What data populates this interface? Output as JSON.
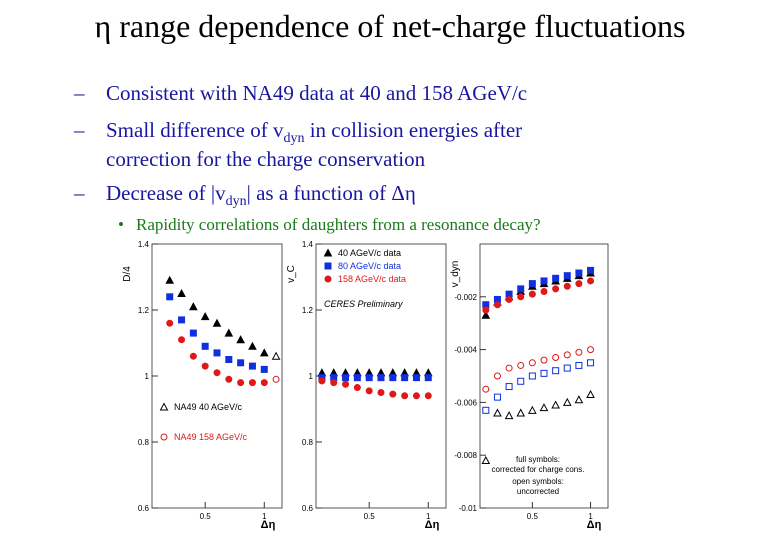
{
  "slide": {
    "title": "η range dependence of net-charge fluctuations",
    "bullets": [
      "Consistent with NA49 data at 40 and 158 AGeV/c",
      "Small difference of v",
      "dyn",
      " in collision energies after",
      "correction for the charge conservation",
      "Decrease of |v",
      "dyn",
      "| as a function of Δη"
    ],
    "sub_bullet": "Rapidity correlations of daughters from a resonance decay?",
    "dash": "–",
    "dot": "•"
  },
  "colors": {
    "text_blue": "#1a16a0",
    "text_green": "#1a7a1a",
    "black_series": "#000000",
    "blue_series": "#1030e0",
    "red_series": "#e01818"
  },
  "chart_data": [
    {
      "type": "scatter",
      "ylabel": "D/4",
      "xlabel": "Δη",
      "yticks": [
        "0.6",
        "0.8",
        "1",
        "1.2",
        "1.4"
      ],
      "xticks": [
        "0.5",
        "1"
      ],
      "ylim": [
        0.6,
        1.4
      ],
      "xlim": [
        0.05,
        1.15
      ],
      "legend": [
        {
          "label": "NA49 40 AGeV/c",
          "marker": "open-triangle",
          "color": "#000000"
        },
        {
          "label": "NA49 158 AGeV/c",
          "marker": "open-circle",
          "color": "#e01818"
        }
      ],
      "series": [
        {
          "name": "NA49 40 AGeV/c",
          "marker": "filled-triangle",
          "color": "#000000",
          "x": [
            0.2,
            0.3,
            0.4,
            0.5,
            0.6,
            0.7,
            0.8,
            0.9,
            1.0
          ],
          "y": [
            1.29,
            1.25,
            1.21,
            1.18,
            1.16,
            1.13,
            1.11,
            1.09,
            1.07
          ]
        },
        {
          "name": "NA49 40 AGeV/c open",
          "marker": "open-triangle",
          "color": "#000000",
          "x": [
            1.1
          ],
          "y": [
            1.06
          ]
        },
        {
          "marker": "filled-square",
          "color": "#1030e0",
          "x": [
            0.2,
            0.3,
            0.4,
            0.5,
            0.6,
            0.7,
            0.8,
            0.9,
            1.0
          ],
          "y": [
            1.24,
            1.17,
            1.13,
            1.09,
            1.07,
            1.05,
            1.04,
            1.03,
            1.02
          ]
        },
        {
          "name": "NA49 158 AGeV/c",
          "marker": "filled-circle",
          "color": "#e01818",
          "x": [
            0.2,
            0.3,
            0.4,
            0.5,
            0.6,
            0.7,
            0.8,
            0.9,
            1.0
          ],
          "y": [
            1.16,
            1.11,
            1.06,
            1.03,
            1.01,
            0.99,
            0.98,
            0.98,
            0.98
          ]
        },
        {
          "marker": "open-circle",
          "color": "#e01818",
          "x": [
            1.1
          ],
          "y": [
            0.99
          ]
        }
      ]
    },
    {
      "type": "scatter",
      "ylabel": "v_C",
      "xlabel": "Δη",
      "yticks": [
        "0.6",
        "0.8",
        "1",
        "1.2",
        "1.4"
      ],
      "xticks": [
        "0.5",
        "1"
      ],
      "ylim": [
        0.6,
        1.4
      ],
      "xlim": [
        0.05,
        1.15
      ],
      "annotation": "CERES Preliminary",
      "legend": [
        {
          "label": "40 AGeV/c data",
          "marker": "filled-triangle",
          "color": "#000000"
        },
        {
          "label": "80 AGeV/c data",
          "marker": "filled-square",
          "color": "#1030e0"
        },
        {
          "label": "158 AGeV/c data",
          "marker": "filled-circle",
          "color": "#e01818"
        }
      ],
      "series": [
        {
          "name": "40 AGeV/c data",
          "marker": "filled-triangle",
          "color": "#000000",
          "x": [
            0.1,
            0.2,
            0.3,
            0.4,
            0.5,
            0.6,
            0.7,
            0.8,
            0.9,
            1.0
          ],
          "y": [
            1.01,
            1.01,
            1.01,
            1.01,
            1.01,
            1.01,
            1.01,
            1.01,
            1.01,
            1.01
          ]
        },
        {
          "name": "80 AGeV/c data",
          "marker": "filled-square",
          "color": "#1030e0",
          "x": [
            0.1,
            0.2,
            0.3,
            0.4,
            0.5,
            0.6,
            0.7,
            0.8,
            0.9,
            1.0
          ],
          "y": [
            0.995,
            0.995,
            0.995,
            0.995,
            0.995,
            0.995,
            0.995,
            0.995,
            0.995,
            0.995
          ]
        },
        {
          "name": "158 AGeV/c data",
          "marker": "filled-circle",
          "color": "#e01818",
          "x": [
            0.1,
            0.2,
            0.3,
            0.4,
            0.5,
            0.6,
            0.7,
            0.8,
            0.9,
            1.0
          ],
          "y": [
            0.985,
            0.98,
            0.975,
            0.965,
            0.955,
            0.95,
            0.945,
            0.94,
            0.94,
            0.94
          ]
        }
      ]
    },
    {
      "type": "scatter",
      "ylabel": "v_dyn",
      "xlabel": "Δη",
      "yticks": [
        "-0.002",
        "-0.004",
        "-0.006",
        "-0.008",
        "-0.01"
      ],
      "xticks": [
        "0.5",
        "1"
      ],
      "ylim": [
        -0.01,
        0.0
      ],
      "xlim": [
        0.05,
        1.15
      ],
      "notes": [
        "full symbols:",
        "corrected for charge cons.",
        "open symbols:",
        "uncorrected"
      ],
      "series": [
        {
          "marker": "filled-triangle",
          "color": "#000000",
          "x": [
            0.1,
            0.2,
            0.3,
            0.4,
            0.5,
            0.6,
            0.7,
            0.8,
            0.9,
            1.0
          ],
          "y": [
            -0.0027,
            -0.0022,
            -0.002,
            -0.0018,
            -0.0016,
            -0.0015,
            -0.0014,
            -0.0013,
            -0.0012,
            -0.0011
          ]
        },
        {
          "marker": "filled-square",
          "color": "#1030e0",
          "x": [
            0.1,
            0.2,
            0.3,
            0.4,
            0.5,
            0.6,
            0.7,
            0.8,
            0.9,
            1.0
          ],
          "y": [
            -0.0023,
            -0.0021,
            -0.0019,
            -0.0017,
            -0.0015,
            -0.0014,
            -0.0013,
            -0.0012,
            -0.0011,
            -0.001
          ]
        },
        {
          "marker": "filled-circle",
          "color": "#e01818",
          "x": [
            0.1,
            0.2,
            0.3,
            0.4,
            0.5,
            0.6,
            0.7,
            0.8,
            0.9,
            1.0
          ],
          "y": [
            -0.0025,
            -0.0023,
            -0.0021,
            -0.002,
            -0.0019,
            -0.0018,
            -0.0017,
            -0.0016,
            -0.0015,
            -0.0014
          ]
        },
        {
          "marker": "open-triangle",
          "color": "#000000",
          "x": [
            0.1,
            0.2,
            0.3,
            0.4,
            0.5,
            0.6,
            0.7,
            0.8,
            0.9,
            1.0
          ],
          "y": [
            -0.0082,
            -0.0064,
            -0.0065,
            -0.0064,
            -0.0063,
            -0.0062,
            -0.0061,
            -0.006,
            -0.0059,
            -0.0057
          ]
        },
        {
          "marker": "open-square",
          "color": "#1030e0",
          "x": [
            0.1,
            0.2,
            0.3,
            0.4,
            0.5,
            0.6,
            0.7,
            0.8,
            0.9,
            1.0
          ],
          "y": [
            -0.0063,
            -0.0058,
            -0.0054,
            -0.0052,
            -0.005,
            -0.0049,
            -0.0048,
            -0.0047,
            -0.0046,
            -0.0045
          ]
        },
        {
          "marker": "open-circle",
          "color": "#e01818",
          "x": [
            0.1,
            0.2,
            0.3,
            0.4,
            0.5,
            0.6,
            0.7,
            0.8,
            0.9,
            1.0
          ],
          "y": [
            -0.0055,
            -0.005,
            -0.0047,
            -0.0046,
            -0.0045,
            -0.0044,
            -0.0043,
            -0.0042,
            -0.0041,
            -0.004
          ]
        }
      ]
    }
  ]
}
